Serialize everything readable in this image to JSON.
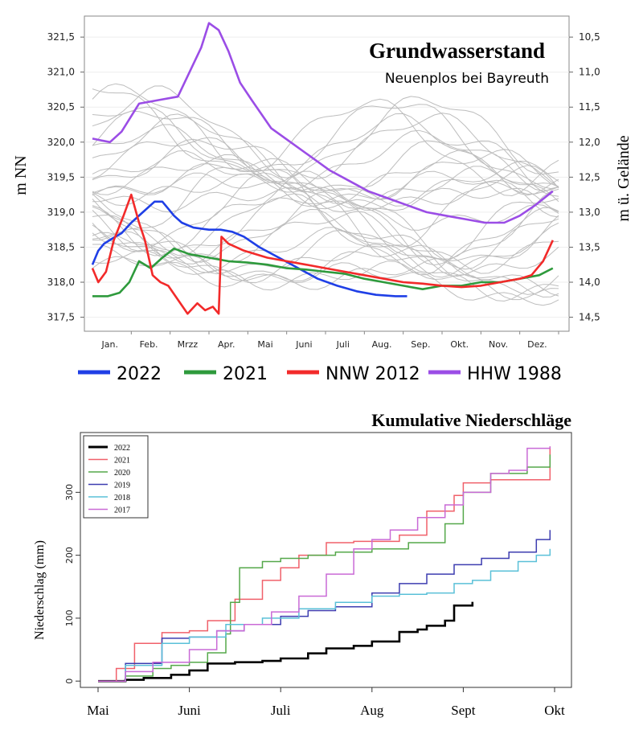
{
  "chart_data": [
    {
      "type": "line",
      "title": "Grundwasserstand",
      "subtitle": "Neuenplos bei Bayreuth",
      "ylabel": "m NN",
      "ylabel_right": "m ü. Gelände",
      "ylim": [
        317.3,
        321.8
      ],
      "y_ticks": [
        "317,5",
        "318,0",
        "318,5",
        "319,0",
        "319,5",
        "320,0",
        "320,5",
        "321,0",
        "321,5"
      ],
      "y_tick_values": [
        317.5,
        318.0,
        318.5,
        319.0,
        319.5,
        320.0,
        320.5,
        321.0,
        321.5
      ],
      "y_ticks_right": [
        "10,5",
        "11,0",
        "11,5",
        "12,0",
        "12,5",
        "13,0",
        "13,5",
        "14,0",
        "14,5"
      ],
      "y_ticks_right_values": [
        321.5,
        321.0,
        320.5,
        320.0,
        319.5,
        319.0,
        318.5,
        318.0,
        317.5
      ],
      "xlim": [
        0,
        12
      ],
      "categories": [
        "Jan.",
        "Feb.",
        "Mrzz",
        "Apr.",
        "Mai",
        "Juni",
        "Juli",
        "Aug.",
        "Sep.",
        "Okt.",
        "Nov.",
        "Dez."
      ],
      "grid": true,
      "legend": "bottom",
      "series": [
        {
          "name": "2022",
          "color": "#1f3fe6",
          "x": [
            0,
            0.15,
            0.3,
            0.5,
            0.75,
            1.0,
            1.3,
            1.6,
            1.8,
            1.95,
            2.1,
            2.3,
            2.6,
            3.0,
            3.3,
            3.6,
            3.9,
            4.3,
            4.8,
            5.3,
            5.8,
            6.3,
            6.8,
            7.3,
            7.8,
            8.1
          ],
          "y": [
            318.25,
            318.45,
            318.55,
            318.62,
            318.7,
            318.85,
            319.0,
            319.15,
            319.15,
            319.05,
            318.95,
            318.85,
            318.78,
            318.75,
            318.75,
            318.72,
            318.65,
            318.5,
            318.35,
            318.2,
            318.05,
            317.95,
            317.87,
            317.82,
            317.8,
            317.8
          ]
        },
        {
          "name": "2021",
          "color": "#2e9a3c",
          "x": [
            0,
            0.4,
            0.7,
            0.95,
            1.2,
            1.5,
            1.8,
            2.1,
            2.5,
            3.0,
            3.5,
            4.0,
            4.5,
            5.0,
            5.5,
            6.0,
            6.5,
            7.0,
            7.5,
            8.0,
            8.5,
            9.0,
            9.5,
            10.0,
            10.5,
            11.0,
            11.5,
            11.85
          ],
          "y": [
            317.8,
            317.8,
            317.85,
            318.0,
            318.3,
            318.2,
            318.35,
            318.48,
            318.4,
            318.35,
            318.3,
            318.28,
            318.25,
            318.2,
            318.18,
            318.15,
            318.12,
            318.05,
            318.0,
            317.95,
            317.9,
            317.95,
            317.95,
            318.0,
            318.0,
            318.05,
            318.1,
            318.2
          ]
        },
        {
          "name": "NNW 2012",
          "color": "#f22a2a",
          "x": [
            0,
            0.15,
            0.35,
            0.55,
            0.8,
            1.0,
            1.2,
            1.35,
            1.55,
            1.75,
            1.95,
            2.2,
            2.45,
            2.7,
            2.9,
            3.1,
            3.25,
            3.32,
            3.5,
            3.9,
            4.5,
            5.0,
            5.5,
            6.0,
            6.5,
            7.0,
            7.5,
            8.0,
            8.5,
            9.0,
            9.5,
            10.0,
            10.5,
            11.0,
            11.3,
            11.6,
            11.85
          ],
          "y": [
            318.2,
            318.0,
            318.15,
            318.6,
            318.95,
            319.25,
            318.85,
            318.6,
            318.1,
            318.0,
            317.95,
            317.75,
            317.55,
            317.7,
            317.6,
            317.65,
            317.55,
            318.65,
            318.55,
            318.45,
            318.35,
            318.3,
            318.25,
            318.2,
            318.15,
            318.1,
            318.05,
            318.0,
            317.98,
            317.95,
            317.93,
            317.95,
            318.0,
            318.05,
            318.1,
            318.3,
            318.6
          ]
        },
        {
          "name": "HHW 1988",
          "color": "#9b4de6",
          "x": [
            0,
            0.45,
            0.75,
            1.2,
            1.7,
            2.2,
            2.5,
            2.8,
            3.0,
            3.25,
            3.5,
            3.8,
            4.1,
            4.6,
            5.1,
            5.6,
            6.1,
            6.6,
            7.1,
            7.6,
            8.1,
            8.6,
            9.1,
            9.6,
            10.1,
            10.6,
            11.0,
            11.4,
            11.85
          ],
          "y": [
            320.05,
            320.0,
            320.15,
            320.55,
            320.6,
            320.65,
            321.0,
            321.35,
            321.7,
            321.6,
            321.3,
            320.85,
            320.6,
            320.2,
            320.0,
            319.8,
            319.6,
            319.45,
            319.3,
            319.2,
            319.1,
            319.0,
            318.95,
            318.9,
            318.85,
            318.85,
            318.95,
            319.1,
            319.3
          ]
        }
      ]
    },
    {
      "type": "line",
      "title": "Kumulative Niederschläge",
      "xlabel": "",
      "ylabel": "Niederschlag (mm)",
      "ylim": [
        -10,
        395
      ],
      "y_ticks": [
        "0",
        "100",
        "200",
        "300"
      ],
      "y_tick_values": [
        0,
        100,
        200,
        300
      ],
      "xlim": [
        -0.25,
        5.2
      ],
      "categories": [
        "Mai",
        "Juni",
        "Juli",
        "Aug",
        "Sept",
        "Okt"
      ],
      "grid": false,
      "legend": "top-left",
      "series": [
        {
          "name": "2022",
          "color": "#000000",
          "x": [
            0,
            0.3,
            0.5,
            0.8,
            1.0,
            1.2,
            1.5,
            1.8,
            2.0,
            2.3,
            2.5,
            2.8,
            3.0,
            3.3,
            3.5,
            3.6,
            3.8,
            3.9,
            4.1
          ],
          "y": [
            0,
            2,
            5,
            10,
            17,
            28,
            30,
            32,
            36,
            44,
            52,
            56,
            63,
            78,
            82,
            88,
            96,
            120,
            126
          ]
        },
        {
          "name": "2021",
          "color": "#f0606a",
          "x": [
            0,
            0.2,
            0.4,
            0.7,
            1.0,
            1.2,
            1.5,
            1.8,
            2.0,
            2.2,
            2.5,
            2.8,
            3.0,
            3.3,
            3.6,
            3.9,
            4.0,
            4.3,
            4.7,
            4.95
          ],
          "y": [
            0,
            20,
            60,
            77,
            80,
            96,
            130,
            160,
            180,
            200,
            220,
            222,
            222,
            232,
            270,
            295,
            315,
            320,
            320,
            373
          ]
        },
        {
          "name": "2020",
          "color": "#55a84a",
          "x": [
            0,
            0.3,
            0.6,
            0.8,
            1.0,
            1.2,
            1.4,
            1.45,
            1.55,
            1.8,
            2.0,
            2.3,
            2.6,
            3.0,
            3.4,
            3.8,
            4.0,
            4.3,
            4.7,
            4.95
          ],
          "y": [
            0,
            8,
            20,
            25,
            30,
            45,
            75,
            125,
            180,
            190,
            195,
            200,
            205,
            210,
            220,
            250,
            300,
            330,
            340,
            360
          ]
        },
        {
          "name": "2019",
          "color": "#3d3db0",
          "x": [
            0,
            0.3,
            0.7,
            1.0,
            1.3,
            1.6,
            2.0,
            2.3,
            2.6,
            3.0,
            3.3,
            3.6,
            3.9,
            4.2,
            4.5,
            4.8,
            4.95
          ],
          "y": [
            0,
            28,
            68,
            70,
            80,
            90,
            103,
            112,
            118,
            140,
            155,
            170,
            185,
            195,
            205,
            225,
            240
          ]
        },
        {
          "name": "2018",
          "color": "#5ac0d8",
          "x": [
            0,
            0.3,
            0.7,
            1.0,
            1.4,
            1.8,
            2.2,
            2.6,
            3.0,
            3.3,
            3.6,
            3.9,
            4.1,
            4.3,
            4.6,
            4.8,
            4.95
          ],
          "y": [
            0,
            25,
            60,
            70,
            90,
            100,
            115,
            125,
            135,
            138,
            140,
            155,
            160,
            175,
            190,
            200,
            210
          ]
        },
        {
          "name": "2017",
          "color": "#c96ad6",
          "x": [
            0,
            0.3,
            0.6,
            1.0,
            1.3,
            1.6,
            1.9,
            2.2,
            2.5,
            2.8,
            3.0,
            3.2,
            3.5,
            3.8,
            4.0,
            4.3,
            4.5,
            4.7,
            4.95
          ],
          "y": [
            0,
            15,
            30,
            50,
            80,
            90,
            110,
            135,
            170,
            210,
            225,
            240,
            260,
            280,
            300,
            330,
            335,
            370,
            373
          ]
        }
      ]
    }
  ]
}
